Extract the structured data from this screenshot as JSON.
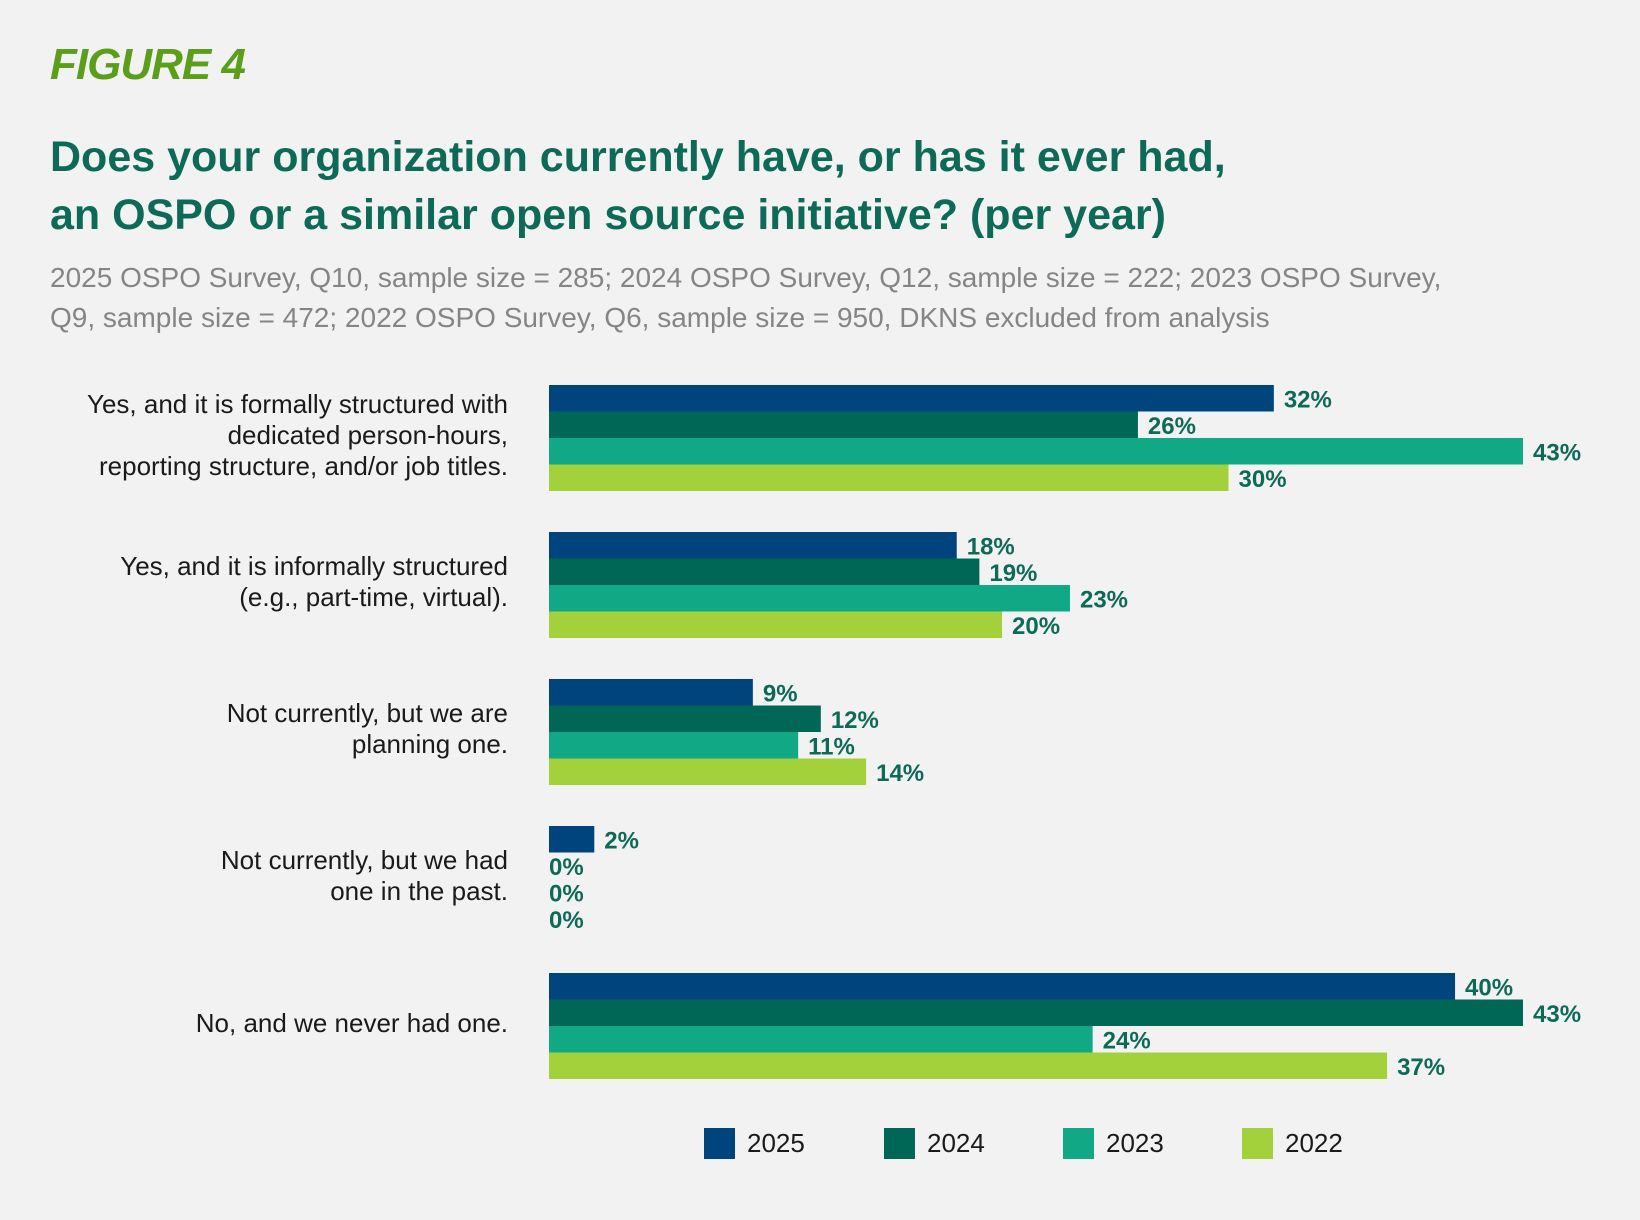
{
  "figure_label": "FIGURE 4",
  "chart_data": {
    "type": "bar",
    "orientation": "horizontal",
    "title": "Does your organization currently have, or has it ever had, an OSPO or a similar open source initiative? (per year)",
    "title_lines": [
      "Does your organization currently have, or has it ever had,",
      "an OSPO or a similar open source initiative? (per year)"
    ],
    "subtitle_lines": [
      "2025 OSPO Survey, Q10, sample size = 285; 2024 OSPO Survey, Q12, sample size = 222; 2023 OSPO Survey,",
      "Q9, sample size = 472; 2022 OSPO Survey, Q6, sample size = 950, DKNS excluded from analysis"
    ],
    "categories": [
      [
        "Yes, and it is formally structured with",
        "dedicated person-hours,",
        "reporting structure, and/or job titles."
      ],
      [
        "Yes, and it is informally structured",
        "(e.g., part-time, virtual)."
      ],
      [
        "Not currently, but we are",
        "planning one."
      ],
      [
        "Not currently, but we had",
        "one in the past."
      ],
      [
        "No, and we never had one."
      ]
    ],
    "series": [
      {
        "name": "2025",
        "color": "#00447e",
        "values": [
          32,
          18,
          9,
          2,
          40
        ],
        "labels": [
          "32%",
          "18%",
          "9%",
          "2%",
          "40%"
        ]
      },
      {
        "name": "2024",
        "color": "#006656",
        "values": [
          26,
          19,
          12,
          0,
          43
        ],
        "labels": [
          "26%",
          "19%",
          "12%",
          "0%",
          "43%"
        ]
      },
      {
        "name": "2023",
        "color": "#11a886",
        "values": [
          43,
          23,
          11,
          0,
          24
        ],
        "labels": [
          "43%",
          "23%",
          "11%",
          "0%",
          "24%"
        ]
      },
      {
        "name": "2022",
        "color": "#a3d13c",
        "values": [
          30,
          20,
          14,
          0,
          37
        ],
        "labels": [
          "30%",
          "20%",
          "14%",
          "0%",
          "37%"
        ]
      }
    ],
    "xlim": [
      0,
      43
    ],
    "value_label_color": "#0d6a57",
    "legend_position": "bottom",
    "grid": false
  }
}
